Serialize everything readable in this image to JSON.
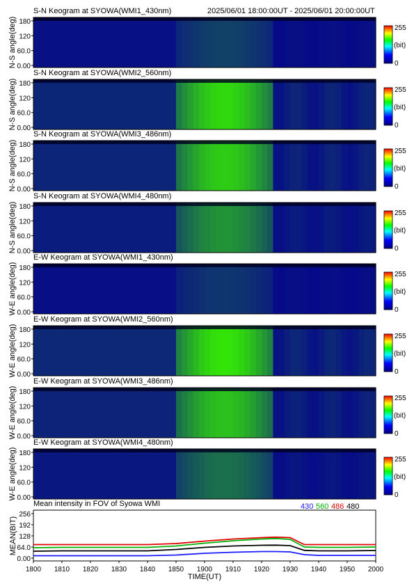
{
  "header": {
    "time_range": "2025/06/01 18:00:00UT - 2025/06/01 20:00:00UT"
  },
  "colors": {
    "series_430": "#1a1aff",
    "series_560": "#00b000",
    "series_486": "#e00000",
    "series_480": "#000000",
    "keogram_low": "#06078a",
    "keogram_high": "#35f000"
  },
  "keograms": [
    {
      "title": "S-N Keogram at SYOWA(WMI1_430nm)",
      "ylabel": "N-S angle(deg)"
    },
    {
      "title": "S-N Keogram at SYOWA(WMI2_560nm)",
      "ylabel": "N-S angle(deg)"
    },
    {
      "title": "S-N Keogram at SYOWA(WMI3_486nm)",
      "ylabel": "N-S angle(deg)"
    },
    {
      "title": "S-N Keogram at SYOWA(WMI4_480nm)",
      "ylabel": "N-S angle(deg)"
    },
    {
      "title": "E-W Keogram at SYOWA(WMI1_430nm)",
      "ylabel": "W-E angle(deg)"
    },
    {
      "title": "E-W Keogram at SYOWA(WMI2_560nm)",
      "ylabel": "W-E angle(deg)"
    },
    {
      "title": "E-W Keogram at SYOWA(WMI3_486nm)",
      "ylabel": "W-E angle(deg)"
    },
    {
      "title": "E-W Keogram at SYOWA(WMI4_480nm)",
      "ylabel": "W-E angle(deg)"
    }
  ],
  "keogram_yticks": [
    "180",
    "120",
    "60.0",
    "0.00"
  ],
  "colorbar": {
    "max_label": "255",
    "unit_label": "(bit)",
    "min_label": "0"
  },
  "chart_data": {
    "type": "line",
    "title": "Mean intensity in FOV of Syowa WMI",
    "xlabel": "TIME(UT)",
    "ylabel": "MEAN(BIT)",
    "xlim": [
      1800,
      2000
    ],
    "ylim": [
      0,
      256
    ],
    "x_ticks": [
      "1800",
      "1810",
      "1820",
      "1830",
      "1840",
      "1850",
      "1900",
      "1910",
      "1920",
      "1930",
      "1940",
      "1950",
      "2000"
    ],
    "y_ticks": [
      "256",
      "192",
      "128",
      "64.0",
      "0.00"
    ],
    "legend": [
      "430",
      "560",
      "486",
      "480"
    ],
    "x": [
      0,
      10,
      20,
      30,
      40,
      50,
      60,
      70,
      80,
      85,
      90,
      95,
      100,
      110,
      120
    ],
    "series": [
      {
        "name": "486",
        "color": "#e00000",
        "values": [
          78,
          78,
          78,
          78,
          78,
          84,
          98,
          110,
          118,
          121,
          118,
          78,
          78,
          78,
          78
        ]
      },
      {
        "name": "560",
        "color": "#00b000",
        "values": [
          60,
          62,
          62,
          62,
          62,
          70,
          86,
          100,
          110,
          113,
          108,
          64,
          62,
          62,
          64
        ]
      },
      {
        "name": "480",
        "color": "#000000",
        "values": [
          40,
          42,
          42,
          42,
          42,
          50,
          62,
          70,
          74,
          75,
          72,
          45,
          42,
          42,
          44
        ]
      },
      {
        "name": "430",
        "color": "#1a1aff",
        "values": [
          14,
          14,
          14,
          14,
          14,
          18,
          28,
          34,
          38,
          38,
          36,
          20,
          16,
          16,
          16
        ]
      }
    ]
  }
}
